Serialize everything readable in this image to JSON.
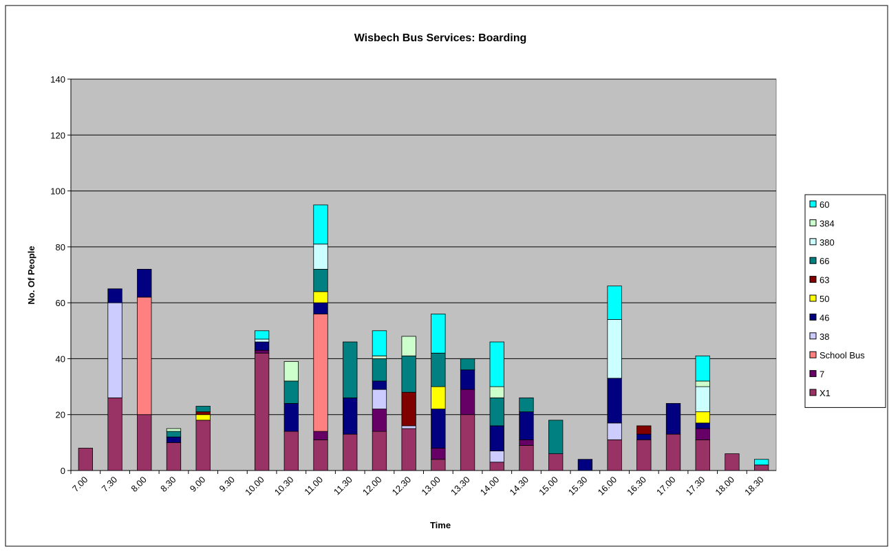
{
  "chart_data": {
    "type": "stacked_bar",
    "title": "Wisbech Bus Services: Boarding",
    "x_label": "Time",
    "y_label": "No. Of People",
    "categories": [
      "7.00",
      "7.30",
      "8.00",
      "8.30",
      "9.00",
      "9.30",
      "10.00",
      "10.30",
      "11.00",
      "11.30",
      "12.00",
      "12.30",
      "13.00",
      "13.30",
      "14.00",
      "14.30",
      "15.00",
      "15.30",
      "16.00",
      "16.30",
      "17.00",
      "17.30",
      "18.00",
      "18.30"
    ],
    "series": [
      {
        "name": "X1",
        "color": "#993366",
        "values": [
          8,
          26,
          20,
          10,
          18,
          0,
          42,
          14,
          11,
          13,
          14,
          15,
          4,
          20,
          3,
          9,
          6,
          0,
          11,
          11,
          13,
          11,
          6,
          2
        ]
      },
      {
        "name": "7",
        "color": "#660066",
        "values": [
          0,
          0,
          0,
          0,
          0,
          0,
          1,
          0,
          3,
          0,
          8,
          0,
          4,
          9,
          0,
          2,
          0,
          0,
          0,
          0,
          0,
          4,
          0,
          0
        ]
      },
      {
        "name": "School Bus",
        "color": "#ff8080",
        "values": [
          0,
          0,
          42,
          0,
          0,
          0,
          0,
          0,
          42,
          0,
          0,
          0,
          0,
          0,
          0,
          0,
          0,
          0,
          0,
          0,
          0,
          0,
          0,
          0
        ]
      },
      {
        "name": "38",
        "color": "#ccccff",
        "values": [
          0,
          34,
          0,
          0,
          0,
          0,
          0,
          0,
          0,
          0,
          7,
          1,
          0,
          0,
          4,
          0,
          0,
          0,
          6,
          0,
          0,
          0,
          0,
          0
        ]
      },
      {
        "name": "46",
        "color": "#000080",
        "values": [
          0,
          5,
          10,
          2,
          0,
          0,
          3,
          10,
          4,
          13,
          3,
          0,
          14,
          7,
          9,
          10,
          0,
          4,
          16,
          2,
          11,
          2,
          0,
          0
        ]
      },
      {
        "name": "50",
        "color": "#ffff00",
        "values": [
          0,
          0,
          0,
          0,
          2,
          0,
          0,
          0,
          4,
          0,
          0,
          0,
          8,
          0,
          0,
          0,
          0,
          0,
          0,
          0,
          0,
          4,
          0,
          0
        ]
      },
      {
        "name": "63",
        "color": "#800000",
        "values": [
          0,
          0,
          0,
          0,
          1,
          0,
          0,
          0,
          0,
          0,
          0,
          12,
          0,
          0,
          0,
          0,
          0,
          0,
          0,
          3,
          0,
          0,
          0,
          0
        ]
      },
      {
        "name": "66",
        "color": "#008080",
        "values": [
          0,
          0,
          0,
          2,
          2,
          0,
          0,
          8,
          8,
          20,
          8,
          13,
          12,
          4,
          10,
          5,
          12,
          0,
          0,
          0,
          0,
          0,
          0,
          0
        ]
      },
      {
        "name": "380",
        "color": "#ccffff",
        "values": [
          0,
          0,
          0,
          0,
          0,
          0,
          1,
          0,
          9,
          0,
          0,
          0,
          0,
          0,
          0,
          0,
          0,
          0,
          21,
          0,
          0,
          9,
          0,
          0
        ]
      },
      {
        "name": "384",
        "color": "#ccffcc",
        "values": [
          0,
          0,
          0,
          1,
          0,
          0,
          0,
          7,
          0,
          0,
          1,
          7,
          0,
          0,
          4,
          0,
          0,
          0,
          0,
          0,
          0,
          2,
          0,
          0
        ]
      },
      {
        "name": "60",
        "color": "#00ffff",
        "values": [
          0,
          0,
          0,
          0,
          0,
          0,
          3,
          0,
          14,
          0,
          9,
          0,
          14,
          0,
          16,
          0,
          0,
          0,
          12,
          0,
          0,
          9,
          0,
          2
        ]
      }
    ],
    "ylim": [
      0,
      140
    ],
    "yticks": [
      0,
      20,
      40,
      60,
      80,
      100,
      120,
      140
    ],
    "grid": true,
    "plot_background": "#c0c0c0",
    "legend": "right"
  }
}
